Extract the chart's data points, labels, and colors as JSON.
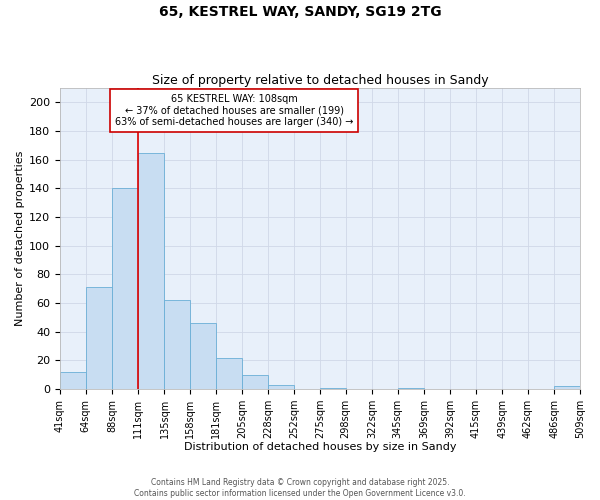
{
  "title": "65, KESTREL WAY, SANDY, SG19 2TG",
  "subtitle": "Size of property relative to detached houses in Sandy",
  "xlabel": "Distribution of detached houses by size in Sandy",
  "ylabel": "Number of detached properties",
  "bar_color": "#c8ddf2",
  "bar_edge_color": "#6aaed6",
  "background_color": "#ffffff",
  "ax_background_color": "#e8f0fa",
  "grid_color": "#d0d8e8",
  "bins": [
    41,
    64,
    88,
    111,
    135,
    158,
    181,
    205,
    228,
    252,
    275,
    298,
    322,
    345,
    369,
    392,
    415,
    439,
    462,
    486,
    509
  ],
  "counts": [
    12,
    71,
    140,
    165,
    62,
    46,
    22,
    10,
    3,
    0,
    1,
    0,
    0,
    1,
    0,
    0,
    0,
    0,
    0,
    2
  ],
  "vline_x": 111,
  "vline_color": "#dd0000",
  "annotation_title": "65 KESTREL WAY: 108sqm",
  "annotation_line1": "← 37% of detached houses are smaller (199)",
  "annotation_line2": "63% of semi-detached houses are larger (340) →",
  "annotation_box_color": "white",
  "annotation_box_edge": "#cc0000",
  "ylim": [
    0,
    210
  ],
  "yticks": [
    0,
    20,
    40,
    60,
    80,
    100,
    120,
    140,
    160,
    180,
    200
  ],
  "tick_labels": [
    "41sqm",
    "64sqm",
    "88sqm",
    "111sqm",
    "135sqm",
    "158sqm",
    "181sqm",
    "205sqm",
    "228sqm",
    "252sqm",
    "275sqm",
    "298sqm",
    "322sqm",
    "345sqm",
    "369sqm",
    "392sqm",
    "415sqm",
    "439sqm",
    "462sqm",
    "486sqm",
    "509sqm"
  ],
  "footer_line1": "Contains HM Land Registry data © Crown copyright and database right 2025.",
  "footer_line2": "Contains public sector information licensed under the Open Government Licence v3.0.",
  "title_fontsize": 10,
  "subtitle_fontsize": 9,
  "xlabel_fontsize": 8,
  "ylabel_fontsize": 8,
  "tick_fontsize": 7,
  "ytick_fontsize": 8,
  "annotation_fontsize": 7,
  "footer_fontsize": 5.5
}
